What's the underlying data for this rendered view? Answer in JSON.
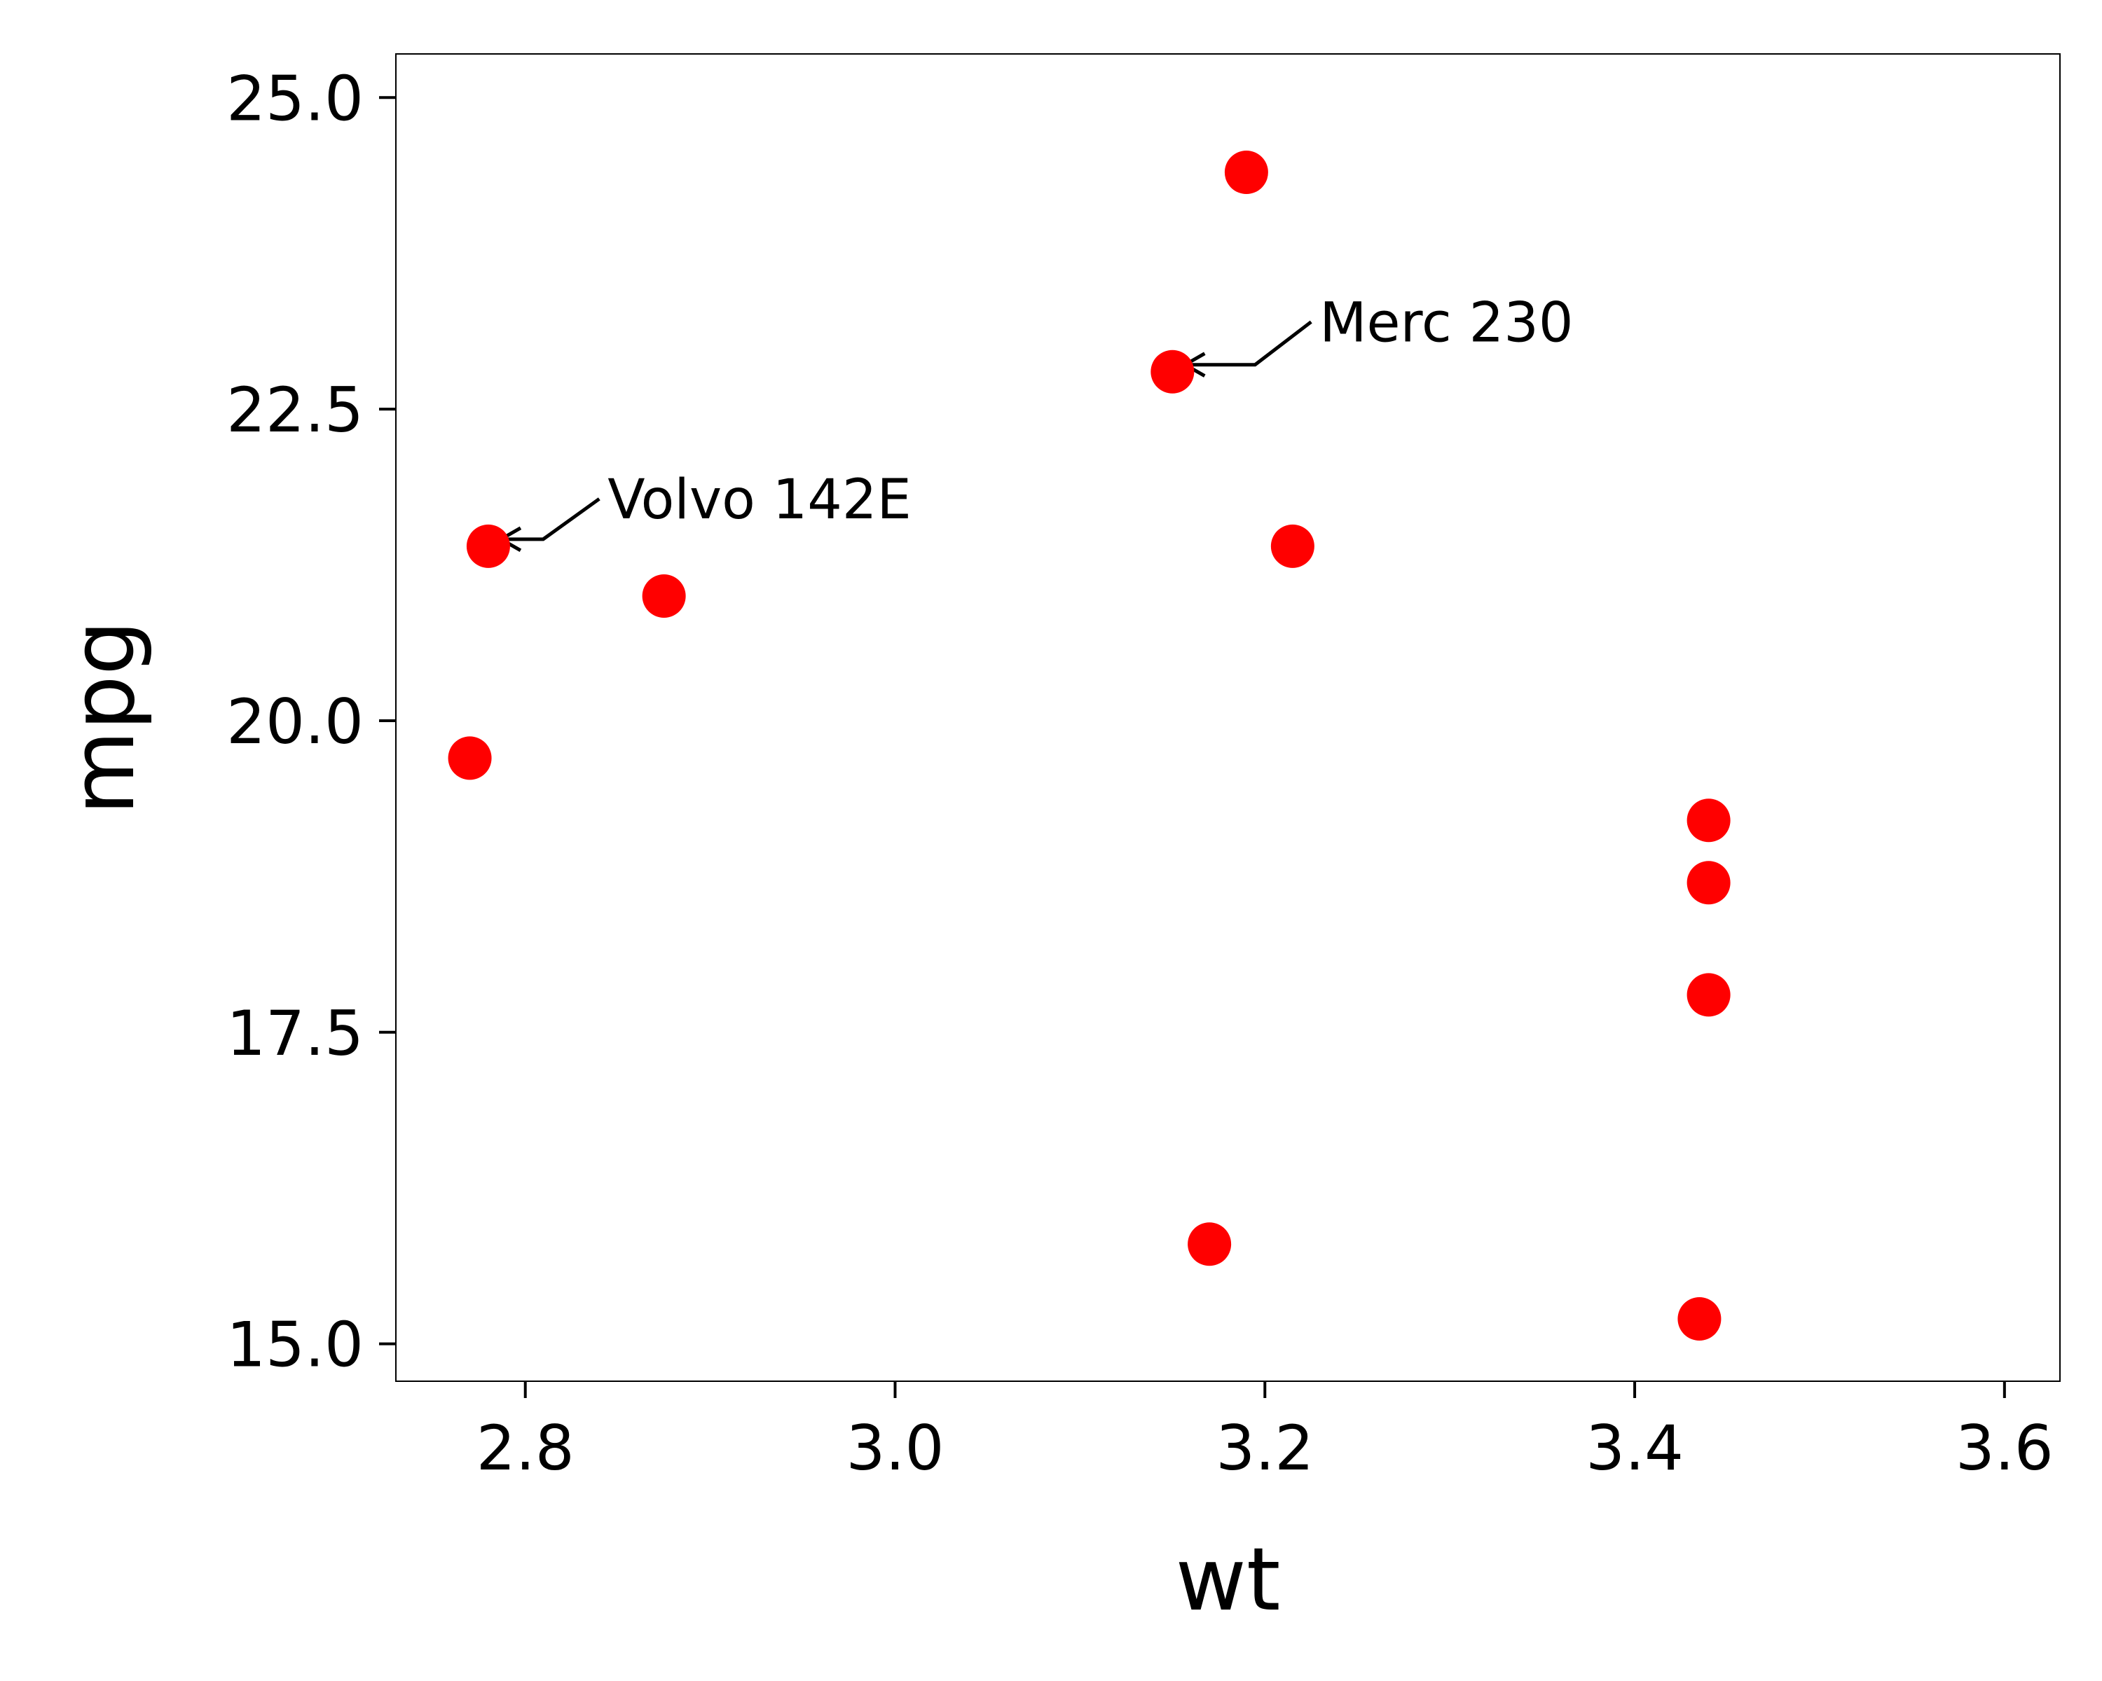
{
  "chart_data": {
    "type": "scatter",
    "title": "",
    "xlabel": "wt",
    "ylabel": "mpg",
    "xlim": [
      2.73,
      3.63
    ],
    "ylim": [
      14.7,
      25.35
    ],
    "xticks": [
      2.8,
      3.0,
      3.2,
      3.4,
      3.6
    ],
    "yticks": [
      15.0,
      17.5,
      20.0,
      22.5,
      25.0
    ],
    "xtick_labels": [
      "2.8",
      "3.0",
      "3.2",
      "3.4",
      "3.6"
    ],
    "ytick_labels": [
      "15.0",
      "17.5",
      "20.0",
      "22.5",
      "25.0"
    ],
    "grid": false,
    "legend": "none",
    "point_color": "#ff0000",
    "points": [
      {
        "x": 2.77,
        "y": 19.7
      },
      {
        "x": 2.78,
        "y": 21.4
      },
      {
        "x": 2.875,
        "y": 21.0
      },
      {
        "x": 3.15,
        "y": 22.8
      },
      {
        "x": 3.17,
        "y": 15.8
      },
      {
        "x": 3.19,
        "y": 24.4
      },
      {
        "x": 3.215,
        "y": 21.4
      },
      {
        "x": 3.435,
        "y": 15.2
      },
      {
        "x": 3.44,
        "y": 17.8
      },
      {
        "x": 3.44,
        "y": 18.7
      },
      {
        "x": 3.44,
        "y": 19.2
      }
    ],
    "annotations": [
      {
        "label": "Volvo 142E",
        "x": 2.78,
        "y": 21.4,
        "text_x": 2.84,
        "text_y": 21.78
      },
      {
        "label": "Merc 230",
        "x": 3.15,
        "y": 22.8,
        "text_x": 3.225,
        "text_y": 23.2
      }
    ]
  }
}
